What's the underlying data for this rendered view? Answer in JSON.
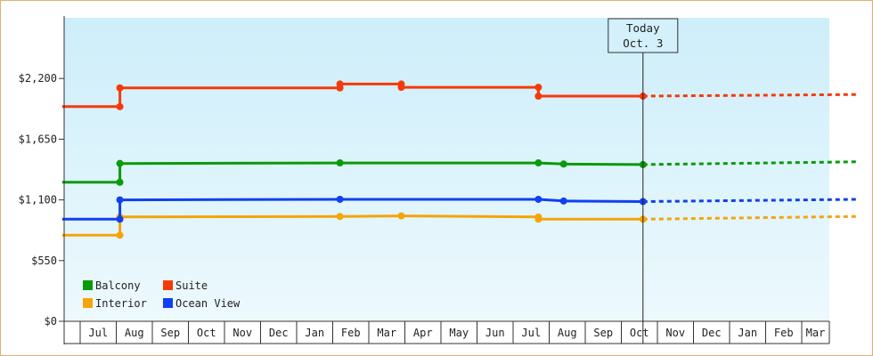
{
  "chart_data": {
    "type": "line",
    "x_months": [
      "Jul",
      "Aug",
      "Sep",
      "Oct",
      "Nov",
      "Dec",
      "Jan",
      "Feb",
      "Mar",
      "Apr",
      "May",
      "Jun",
      "Jul",
      "Aug",
      "Sep",
      "Oct",
      "Nov",
      "Dec",
      "Jan",
      "Feb",
      "Mar"
    ],
    "y_ticks": [
      "$0",
      "$550",
      "$1,100",
      "$1,650",
      "$2,200"
    ],
    "ylim": [
      0,
      2750
    ],
    "today_marker": {
      "line1": "Today",
      "line2": "Oct. 3",
      "x": 15.6
    },
    "legend": {
      "position": "bottom-left"
    },
    "grid": false,
    "series": [
      {
        "name": "Balcony",
        "color": "#0a9a0a",
        "points": [
          [
            -0.5,
            1260
          ],
          [
            1.1,
            1260
          ],
          [
            1.1,
            1430
          ],
          [
            7.2,
            1435
          ],
          [
            12.7,
            1435
          ],
          [
            13.4,
            1425
          ],
          [
            15.6,
            1420
          ]
        ],
        "forecast": [
          [
            15.6,
            1420
          ],
          [
            21.5,
            1445
          ]
        ]
      },
      {
        "name": "Suite",
        "color": "#f53a0a",
        "points": [
          [
            -0.5,
            1945
          ],
          [
            1.1,
            1945
          ],
          [
            1.1,
            2115
          ],
          [
            7.2,
            2115
          ],
          [
            7.2,
            2150
          ],
          [
            8.9,
            2150
          ],
          [
            8.9,
            2120
          ],
          [
            12.7,
            2120
          ],
          [
            12.7,
            2040
          ],
          [
            15.6,
            2040
          ]
        ],
        "forecast": [
          [
            15.6,
            2040
          ],
          [
            21.5,
            2055
          ]
        ]
      },
      {
        "name": "Interior",
        "color": "#f5a40a",
        "points": [
          [
            -0.5,
            780
          ],
          [
            1.1,
            780
          ],
          [
            1.1,
            945
          ],
          [
            7.2,
            950
          ],
          [
            8.9,
            955
          ],
          [
            12.7,
            945
          ],
          [
            12.7,
            925
          ],
          [
            15.6,
            925
          ]
        ],
        "forecast": [
          [
            15.6,
            925
          ],
          [
            21.5,
            950
          ]
        ]
      },
      {
        "name": "Ocean View",
        "color": "#1040f0",
        "points": [
          [
            -0.5,
            925
          ],
          [
            1.1,
            925
          ],
          [
            1.1,
            1100
          ],
          [
            7.2,
            1105
          ],
          [
            12.7,
            1105
          ],
          [
            13.4,
            1090
          ],
          [
            15.6,
            1085
          ]
        ],
        "forecast": [
          [
            15.6,
            1085
          ],
          [
            21.5,
            1105
          ]
        ]
      }
    ]
  }
}
